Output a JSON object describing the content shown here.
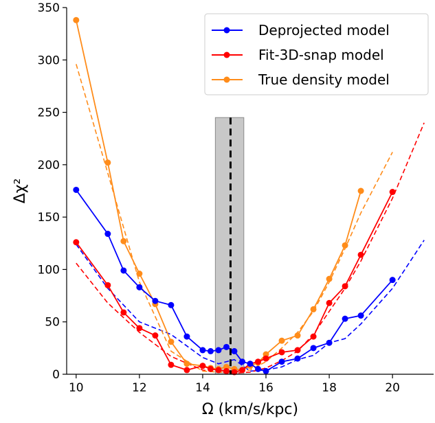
{
  "chart_data": {
    "type": "line",
    "xlabel": "Ω (km/s/kpc)",
    "ylabel": "Δχ²",
    "xlim": [
      9.7,
      21.3
    ],
    "ylim": [
      0,
      350
    ],
    "xticks": [
      10,
      12,
      14,
      16,
      18,
      20
    ],
    "yticks": [
      0,
      50,
      100,
      150,
      200,
      250,
      300,
      350
    ],
    "grid": false,
    "legend_position": "top-right",
    "colors": {
      "deprojected": "#0000ff",
      "fit3d": "#ff0000",
      "true_density": "#ff8c1a",
      "band": "#c8c8c8",
      "vline": "#000000"
    },
    "shaded_band": {
      "x_min": 14.4,
      "x_max": 15.3,
      "y_max": 245
    },
    "vertical_line": {
      "x": 14.88
    },
    "series": [
      {
        "name": "Deprojected model",
        "key": "deprojected",
        "x": [
          10,
          11,
          11.5,
          12,
          12.5,
          13,
          13.5,
          14,
          14.25,
          14.5,
          14.75,
          15,
          15.25,
          15.5,
          15.75,
          16,
          16.5,
          17,
          17.5,
          18,
          18.5,
          19,
          20
        ],
        "y": [
          176,
          134,
          99,
          83,
          70,
          66,
          36,
          23,
          22,
          23,
          26,
          22,
          12,
          10,
          5,
          3,
          12,
          15,
          25,
          30,
          53,
          56,
          90
        ]
      },
      {
        "name": "Fit-3D-snap model",
        "key": "fit3d",
        "x": [
          10,
          11,
          11.5,
          12,
          12.5,
          13,
          13.5,
          14,
          14.25,
          14.5,
          14.75,
          15,
          15.25,
          15.5,
          15.75,
          16,
          16.5,
          17,
          17.5,
          18,
          18.5,
          19,
          20
        ],
        "y": [
          126,
          85,
          59,
          44,
          37,
          9,
          4,
          8,
          5,
          4,
          3,
          2,
          4,
          10,
          12,
          15,
          21,
          23,
          36,
          68,
          84,
          114,
          174
        ]
      },
      {
        "name": "True density model",
        "key": "true_density",
        "x": [
          10,
          11,
          11.5,
          12,
          12.5,
          13,
          13.5,
          14,
          14.25,
          14.5,
          14.75,
          15,
          15.25,
          15.5,
          15.75,
          16,
          16.5,
          17,
          17.5,
          18,
          18.5,
          19
        ],
        "y": [
          338,
          202,
          127,
          96,
          67,
          31,
          10,
          8,
          6,
          5,
          7,
          5,
          4,
          8,
          11,
          19,
          32,
          37,
          62,
          91,
          123,
          175
        ]
      }
    ],
    "dashed_series": [
      {
        "key": "deprojected",
        "x": [
          10,
          11,
          12,
          13,
          14,
          14.5,
          15,
          15.5,
          16,
          16.5,
          17,
          17.5,
          18,
          18.5,
          19,
          20,
          21
        ],
        "y": [
          124,
          82,
          50,
          38,
          16,
          10,
          14,
          3,
          4,
          7,
          14,
          18,
          30,
          34,
          48,
          82,
          128
        ]
      },
      {
        "key": "fit3d",
        "x": [
          10,
          11,
          12,
          13,
          14,
          14.5,
          15,
          15.5,
          16,
          16.5,
          17,
          17.5,
          18,
          18.5,
          19,
          20,
          21
        ],
        "y": [
          106,
          68,
          40,
          17,
          4,
          2,
          1,
          2,
          6,
          13,
          22,
          38,
          60,
          82,
          108,
          168,
          240
        ]
      },
      {
        "key": "true_density",
        "x": [
          10,
          11,
          12,
          13,
          14,
          14.5,
          15,
          15.5,
          16,
          16.5,
          17,
          17.5,
          18,
          18.5,
          19,
          20
        ],
        "y": [
          296,
          192,
          88,
          22,
          3,
          2,
          2,
          4,
          12,
          25,
          40,
          60,
          88,
          120,
          154,
          212
        ]
      }
    ]
  }
}
